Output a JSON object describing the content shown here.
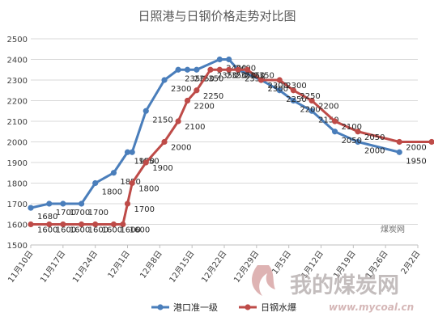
{
  "chart_data": {
    "type": "line",
    "title": "日照港与日钢价格走势对比图",
    "categories": [
      "11月10日",
      "11月17日",
      "11月24日",
      "12月1日",
      "12月8日",
      "12月15日",
      "12月22日",
      "12月29日",
      "1月5日",
      "1月12日",
      "1月19日",
      "1月26日",
      "2月2日"
    ],
    "x": [
      "11月10日",
      "11月14日",
      "11月17日",
      "11月21日",
      "11月24日",
      "11月28日",
      "11月30日",
      "12月1日",
      "12月2日",
      "12月5日",
      "12月9日",
      "12月12日",
      "12月14日",
      "12月16日",
      "12月19日",
      "12月21日",
      "12月23日",
      "12月25日",
      "12月27日",
      "12月30日",
      "1月3日",
      "1月6日",
      "1月10日",
      "1月15日",
      "1月20日",
      "1月29日",
      "2月5日"
    ],
    "ylim": [
      1500,
      2500
    ],
    "yticks": [
      1500,
      1600,
      1700,
      1800,
      1900,
      2000,
      2100,
      2200,
      2300,
      2400,
      2500
    ],
    "grid": true,
    "legend": "bottom",
    "series": [
      {
        "name": "港口准一级",
        "color": "#4a7ebb",
        "values": [
          1680,
          1700,
          1700,
          1700,
          1800,
          1850,
          null,
          1950,
          1950,
          2150,
          2300,
          2350,
          2350,
          2350,
          null,
          2400,
          2400,
          2350,
          null,
          2300,
          2250,
          2200,
          2150,
          2050,
          2000,
          1950,
          null
        ]
      },
      {
        "name": "日钢水爆",
        "color": "#be4b48",
        "values": [
          1600,
          1600,
          1600,
          1600,
          1600,
          1600,
          1600,
          1700,
          1800,
          1900,
          2000,
          2100,
          2200,
          2250,
          2350,
          2350,
          2350,
          2350,
          2350,
          2300,
          2300,
          2250,
          2200,
          2100,
          2050,
          2000,
          2000
        ]
      }
    ],
    "data_labels": {
      "港口准一级": [
        "1680",
        "1700",
        "1700",
        "1700",
        "1800",
        "1850",
        "1950",
        "1950",
        "2150",
        "2300",
        "2350",
        "2350",
        "2350",
        "2400",
        "2400",
        "2350",
        "2300",
        "2250",
        "2200",
        "2150",
        "2050",
        "2000",
        "1950"
      ],
      "日钢水爆": [
        "1600",
        "1600",
        "1600",
        "1600",
        "1600",
        "1600",
        "1600",
        "1700",
        "1800",
        "1900",
        "2000",
        "2100",
        "2200",
        "2250",
        "2350",
        "2350",
        "2350",
        "2350",
        "2350",
        "2300",
        "2300",
        "2250",
        "2200",
        "2100",
        "2050",
        "2000",
        "2000"
      ]
    }
  },
  "watermark": {
    "brand": "我的煤炭网",
    "url": "www.mycoal.cn",
    "small": "煤炭网"
  }
}
